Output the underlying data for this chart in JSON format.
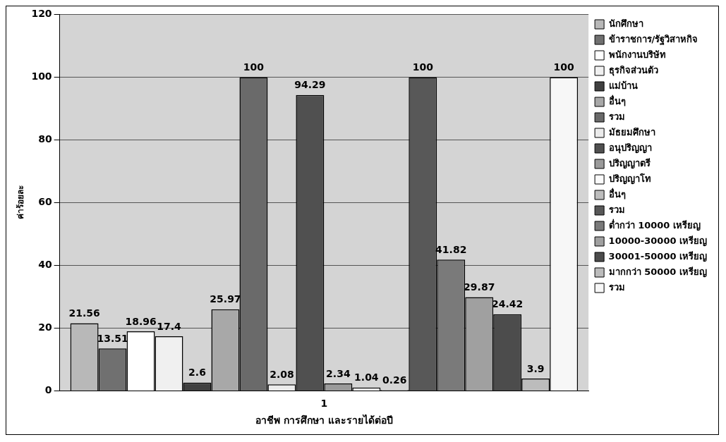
{
  "chart_data": {
    "type": "bar",
    "xlabel": "อาชีพ การศึกษา และรายได้ต่อปี",
    "ylabel": "ค่าร้อยละ",
    "categories": [
      "1"
    ],
    "ylim": [
      0,
      120
    ],
    "yticks": [
      0,
      20,
      40,
      60,
      80,
      100,
      120
    ],
    "grid": "y",
    "legend": "right",
    "data_labels": true,
    "series": [
      {
        "name": "นักศึกษา",
        "color": "#b8b8b8",
        "values": [
          21.56
        ]
      },
      {
        "name": "ข้าราชการ/รัฐวิสาหกิจ",
        "color": "#707070",
        "values": [
          13.51
        ]
      },
      {
        "name": "พนักงานบริษัท",
        "color": "#ffffff",
        "values": [
          18.96
        ]
      },
      {
        "name": "ธุรกิจส่วนตัว",
        "color": "#f0f0f0",
        "values": [
          17.4
        ]
      },
      {
        "name": "แม่บ้าน",
        "color": "#404040",
        "values": [
          2.6
        ]
      },
      {
        "name": "อื่นๆ",
        "color": "#a8a8a8",
        "values": [
          25.97
        ]
      },
      {
        "name": "รวม",
        "color": "#6a6a6a",
        "values": [
          100
        ]
      },
      {
        "name": "มัธยมศึกษา",
        "color": "#ebebeb",
        "values": [
          2.08
        ]
      },
      {
        "name": "อนุปริญญา",
        "color": "#505050",
        "values": [
          94.29
        ]
      },
      {
        "name": "ปริญญาตรี",
        "color": "#9a9a9a",
        "values": [
          2.34
        ]
      },
      {
        "name": "ปริญญาโท",
        "color": "#fbfbfb",
        "values": [
          1.04
        ]
      },
      {
        "name": "อื่นๆ",
        "color": "#bdbdbd",
        "values": [
          0.26
        ]
      },
      {
        "name": "รวม",
        "color": "#585858",
        "values": [
          100
        ]
      },
      {
        "name": "ต่ำกว่า 10000 เหรียญ",
        "color": "#7a7a7a",
        "values": [
          41.82
        ]
      },
      {
        "name": "10000-30000 เหรียญ",
        "color": "#a0a0a0",
        "values": [
          29.87
        ]
      },
      {
        "name": "30001-50000 เหรียญ",
        "color": "#4c4c4c",
        "values": [
          24.42
        ]
      },
      {
        "name": "มากกว่า 50000 เหรียญ",
        "color": "#bcbcbc",
        "values": [
          3.9
        ]
      },
      {
        "name": "รวม",
        "color": "#f7f7f7",
        "values": [
          100
        ]
      }
    ]
  }
}
